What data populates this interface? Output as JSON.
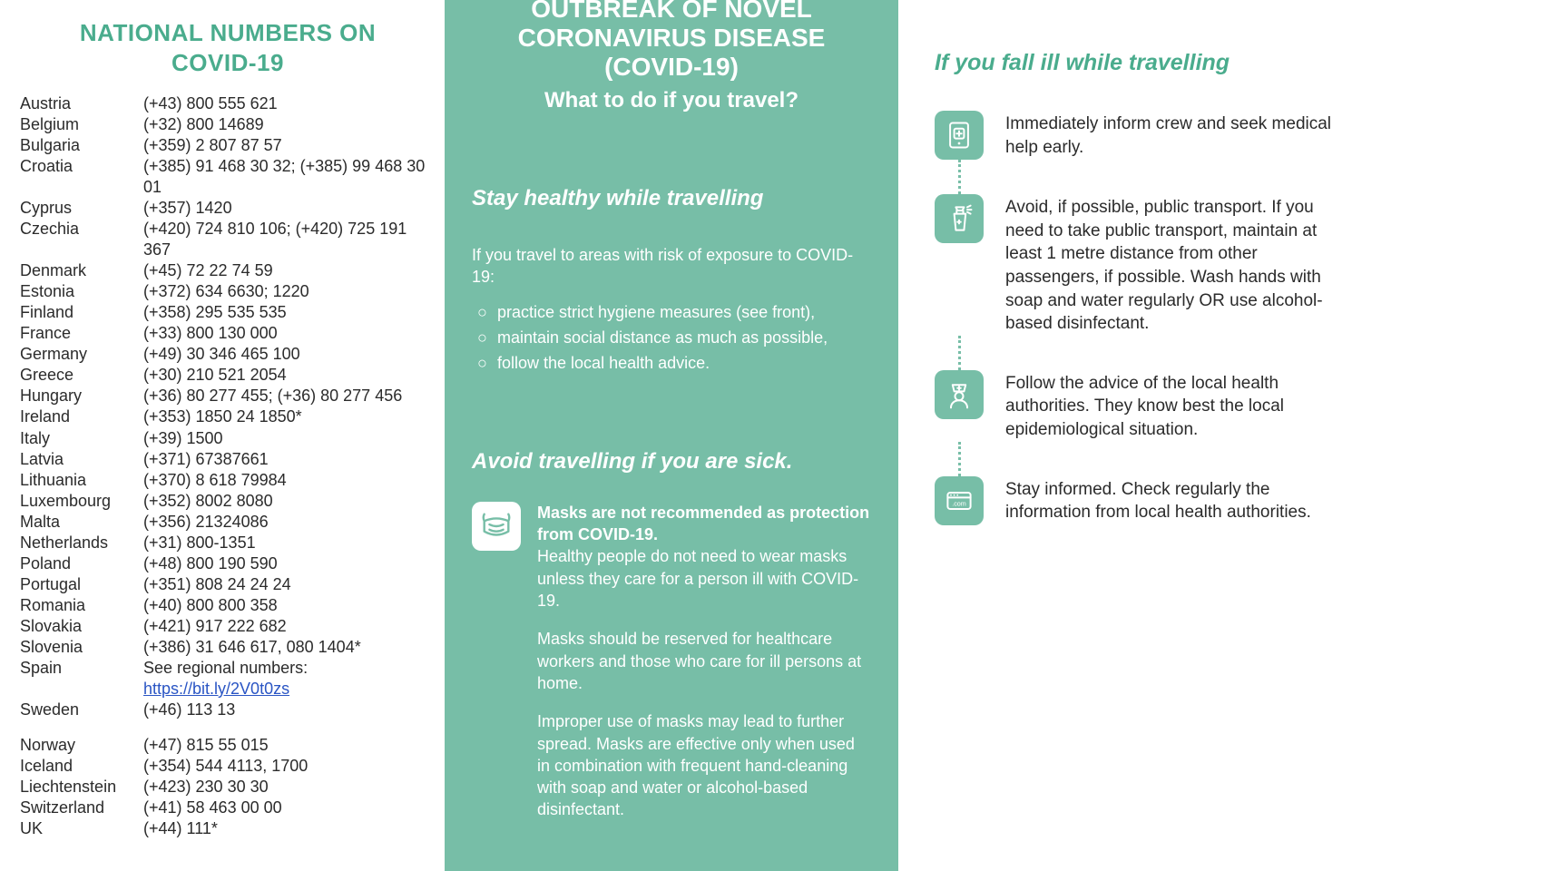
{
  "colors": {
    "teal": "#77bea7",
    "tealText": "#4aac8d",
    "bodyText": "#2b2b2b",
    "white": "#ffffff",
    "link": "#2a55c4"
  },
  "fonts": {
    "title1_size": 26,
    "body_size": 18,
    "title2_main_size": 28,
    "title2_sub_size": 24,
    "sec_head_size": 24,
    "title3_size": 25,
    "tip_text_size": 19
  },
  "col1": {
    "title_line1": "NATIONAL NUMBERS ON",
    "title_line2": "COVID-19",
    "rows_a": [
      {
        "c": "Austria",
        "p": "(+43) 800 555 621"
      },
      {
        "c": "Belgium",
        "p": "(+32) 800 14689"
      },
      {
        "c": "Bulgaria",
        "p": "(+359) 2 807 87 57"
      },
      {
        "c": "Croatia",
        "p": "(+385) 91 468 30 32; (+385) 99 468 30 01"
      },
      {
        "c": "Cyprus",
        "p": "(+357) 1420"
      },
      {
        "c": "Czechia",
        "p": "(+420) 724 810 106; (+420) 725 191 367"
      },
      {
        "c": "Denmark",
        "p": "(+45) 72 22 74 59"
      },
      {
        "c": "Estonia",
        "p": "(+372) 634 6630; 1220"
      },
      {
        "c": "Finland",
        "p": "(+358) 295 535 535"
      },
      {
        "c": "France",
        "p": "(+33) 800 130 000"
      },
      {
        "c": "Germany",
        "p": "(+49) 30 346 465 100"
      },
      {
        "c": "Greece",
        "p": "(+30) 210 521 2054"
      },
      {
        "c": "Hungary",
        "p": "(+36) 80 277 455; (+36) 80 277 456"
      },
      {
        "c": "Ireland",
        "p": "(+353) 1850 24 1850*"
      },
      {
        "c": "Italy",
        "p": "(+39) 1500"
      },
      {
        "c": "Latvia",
        "p": "(+371) 67387661"
      },
      {
        "c": "Lithuania",
        "p": "(+370) 8 618 79984"
      },
      {
        "c": "Luxembourg",
        "p": "(+352) 8002 8080"
      },
      {
        "c": "Malta",
        "p": "(+356) 21324086"
      },
      {
        "c": "Netherlands",
        "p": "(+31) 800-1351"
      },
      {
        "c": "Poland",
        "p": "(+48) 800 190 590"
      },
      {
        "c": "Portugal",
        "p": "(+351) 808 24 24 24"
      },
      {
        "c": "Romania",
        "p": "(+40) 800 800 358"
      },
      {
        "c": "Slovakia",
        "p": "(+421) 917 222 682"
      },
      {
        "c": "Slovenia",
        "p": "(+386) 31 646 617,  080 1404*"
      }
    ],
    "spain": {
      "c": "Spain",
      "prefix": "See regional numbers: ",
      "link": "https://bit.ly/2V0t0zs"
    },
    "rows_b": [
      {
        "c": "Sweden",
        "p": "(+46) 113 13"
      }
    ],
    "rows_c": [
      {
        "c": "Norway",
        "p": "(+47) 815 55 015"
      },
      {
        "c": "Iceland",
        "p": "(+354) 544 4113, 1700"
      },
      {
        "c": "Liechtenstein",
        "p": "(+423) 230 30 30"
      },
      {
        "c": "Switzerland",
        "p": "(+41) 58 463 00 00"
      },
      {
        "c": "UK",
        "p": "(+44) 111*"
      }
    ]
  },
  "col2": {
    "title_main_l1": "OUTBREAK OF NOVEL",
    "title_main_l2": "CORONAVIRUS DISEASE (COVID-19)",
    "title_sub": "What to do if you travel?",
    "sec1_head": "Stay healthy while travelling",
    "intro": "If you travel to areas with risk of exposure to COVID-19:",
    "bullets": [
      "practice strict hygiene measures (see front),",
      "maintain social distance as much as possible,",
      "follow the local health advice."
    ],
    "sec2_head": "Avoid travelling if you are sick.",
    "mask_bold": "Masks are not recommended as protection from COVID-19.",
    "mask_p1": "Healthy people do not need to wear masks unless they care for a person ill with COVID-19.",
    "mask_p2": "Masks should be reserved for healthcare workers and those who care for ill persons at home.",
    "mask_p3": "Improper use of masks may lead to further spread. Masks are effective only when used in combination with frequent hand-cleaning with soap and water or alcohol-based disinfectant."
  },
  "col3": {
    "title": "If you fall ill while travelling",
    "tips": [
      {
        "icon": "device-medical",
        "text": "Immediately inform crew and seek medical help early."
      },
      {
        "icon": "spray-bottle",
        "text": "Avoid, if possible, public transport. If you need to take public transport, maintain at least 1 metre distance from other passengers, if possible. Wash hands with soap and water regularly OR use alcohol-based disinfectant."
      },
      {
        "icon": "nurse",
        "text": "Follow the advice of the local health authorities. They know best the local epidemiological situation."
      },
      {
        "icon": "browser-com",
        "text": "Stay informed. Check regularly the information from local health authorities."
      }
    ]
  }
}
